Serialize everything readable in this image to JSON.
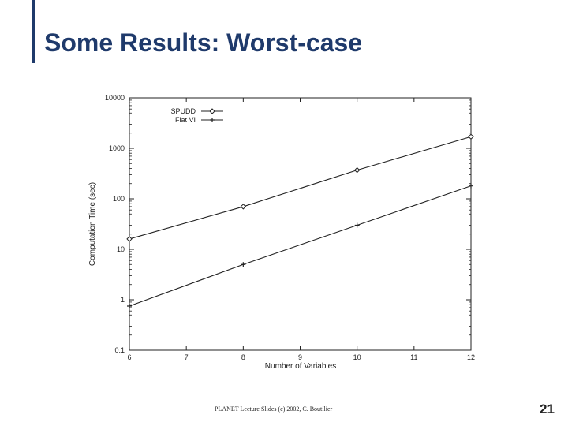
{
  "slide": {
    "title": "Some Results: Worst-case",
    "footer": "PLANET Lecture Slides (c) 2002, C. Boutilier",
    "page_number": "21"
  },
  "chart_data": {
    "type": "line",
    "xlabel": "Number of Variables",
    "ylabel": "Computation Time (sec)",
    "x_scale": "linear",
    "y_scale": "log",
    "xlim": [
      6,
      12
    ],
    "ylim": [
      0.1,
      10000
    ],
    "x_ticks": [
      "6",
      "7",
      "8",
      "9",
      "10",
      "11",
      "12"
    ],
    "y_ticks": [
      "0.1",
      "1",
      "10",
      "100",
      "1000",
      "10000"
    ],
    "grid": false,
    "legend_position": "top-left",
    "colors": {
      "axis": "#222222",
      "series": "#222222"
    },
    "series": [
      {
        "name": "SPUDD",
        "marker": "diamond",
        "x": [
          6,
          8,
          10,
          12
        ],
        "y": [
          16,
          70,
          370,
          1700
        ]
      },
      {
        "name": "Flat VI",
        "marker": "plus",
        "x": [
          6,
          8,
          10,
          12
        ],
        "y": [
          0.75,
          5,
          30,
          180
        ]
      }
    ]
  }
}
